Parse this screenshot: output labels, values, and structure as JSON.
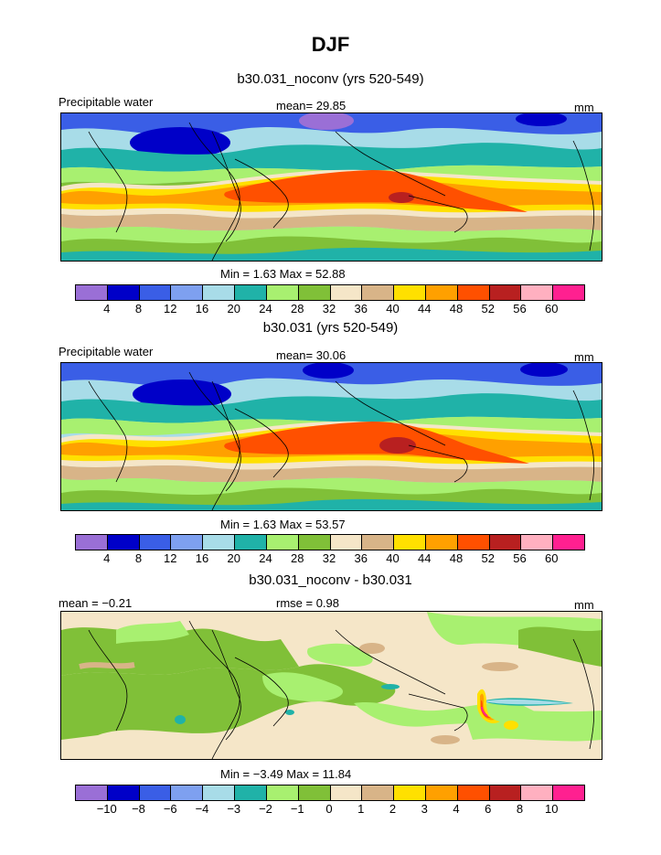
{
  "title": "DJF",
  "panels": [
    {
      "subtitle": "b30.031_noconv (yrs 520-549)",
      "left_label": "Precipitable water",
      "mean_text": "mean=   29.85",
      "unit": "mm",
      "minmax": "Min =     1.63  Max =    52.88"
    },
    {
      "subtitle": "b30.031 (yrs 520-549)",
      "left_label": "Precipitable water",
      "mean_text": "mean=   30.06",
      "unit": "mm",
      "minmax": "Min =     1.63  Max =    53.57"
    },
    {
      "subtitle": "b30.031_noconv - b30.031",
      "left_label": "mean =   −0.21",
      "mean_text": "rmse =     0.98",
      "unit": "mm",
      "minmax": "Min =   −3.49  Max =    11.84"
    }
  ],
  "colorbar_main": {
    "colors": [
      "#9a6fd6",
      "#0000c8",
      "#3a5ee6",
      "#7ea0f0",
      "#a8dce8",
      "#20b2a8",
      "#a8f070",
      "#80c038",
      "#f5e6c8",
      "#d8b488",
      "#ffe000",
      "#ffa000",
      "#ff5000",
      "#b82020",
      "#ffb0c0",
      "#ff2090"
    ],
    "ticks": [
      "4",
      "8",
      "12",
      "16",
      "20",
      "24",
      "28",
      "32",
      "36",
      "40",
      "44",
      "48",
      "52",
      "56",
      "60"
    ]
  },
  "colorbar_diff": {
    "colors": [
      "#9a6fd6",
      "#0000c8",
      "#3a5ee6",
      "#7ea0f0",
      "#a8dce8",
      "#20b2a8",
      "#a8f070",
      "#80c038",
      "#f5e6c8",
      "#d8b488",
      "#ffe000",
      "#ffa000",
      "#ff5000",
      "#b82020",
      "#ffb0c0",
      "#ff2090"
    ],
    "ticks": [
      "−10",
      "−8",
      "−6",
      "−4",
      "−3",
      "−2",
      "−1",
      "0",
      "1",
      "2",
      "3",
      "4",
      "6",
      "8",
      "10"
    ]
  }
}
